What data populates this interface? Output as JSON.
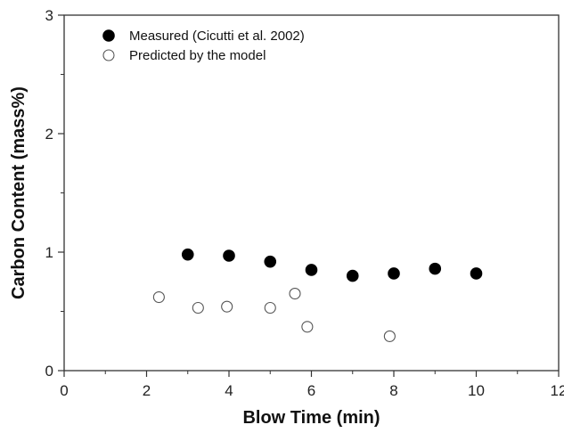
{
  "chart_data": {
    "type": "scatter",
    "xlabel": "Blow Time (min)",
    "ylabel": "Carbon Content (mass%)",
    "xlim": [
      0,
      12
    ],
    "ylim": [
      0,
      3
    ],
    "x_ticks": [
      0,
      2,
      4,
      6,
      8,
      10,
      12
    ],
    "y_ticks": [
      0,
      1,
      2,
      3
    ],
    "grid": false,
    "legend_position": "top-left",
    "series": [
      {
        "name": "Measured (Cicutti et al. 2002)",
        "marker": "filled-circle",
        "color": "#000000",
        "x": [
          3,
          4,
          5,
          6,
          7,
          8,
          9,
          10
        ],
        "y": [
          0.98,
          0.97,
          0.92,
          0.85,
          0.8,
          0.82,
          0.86,
          0.82
        ]
      },
      {
        "name": "Predicted by the model",
        "marker": "open-circle",
        "color": "#000000",
        "x": [
          2.3,
          3.25,
          3.95,
          5.0,
          5.6,
          5.9,
          7.9
        ],
        "y": [
          0.62,
          0.53,
          0.54,
          0.53,
          0.65,
          0.37,
          0.29
        ]
      }
    ]
  }
}
